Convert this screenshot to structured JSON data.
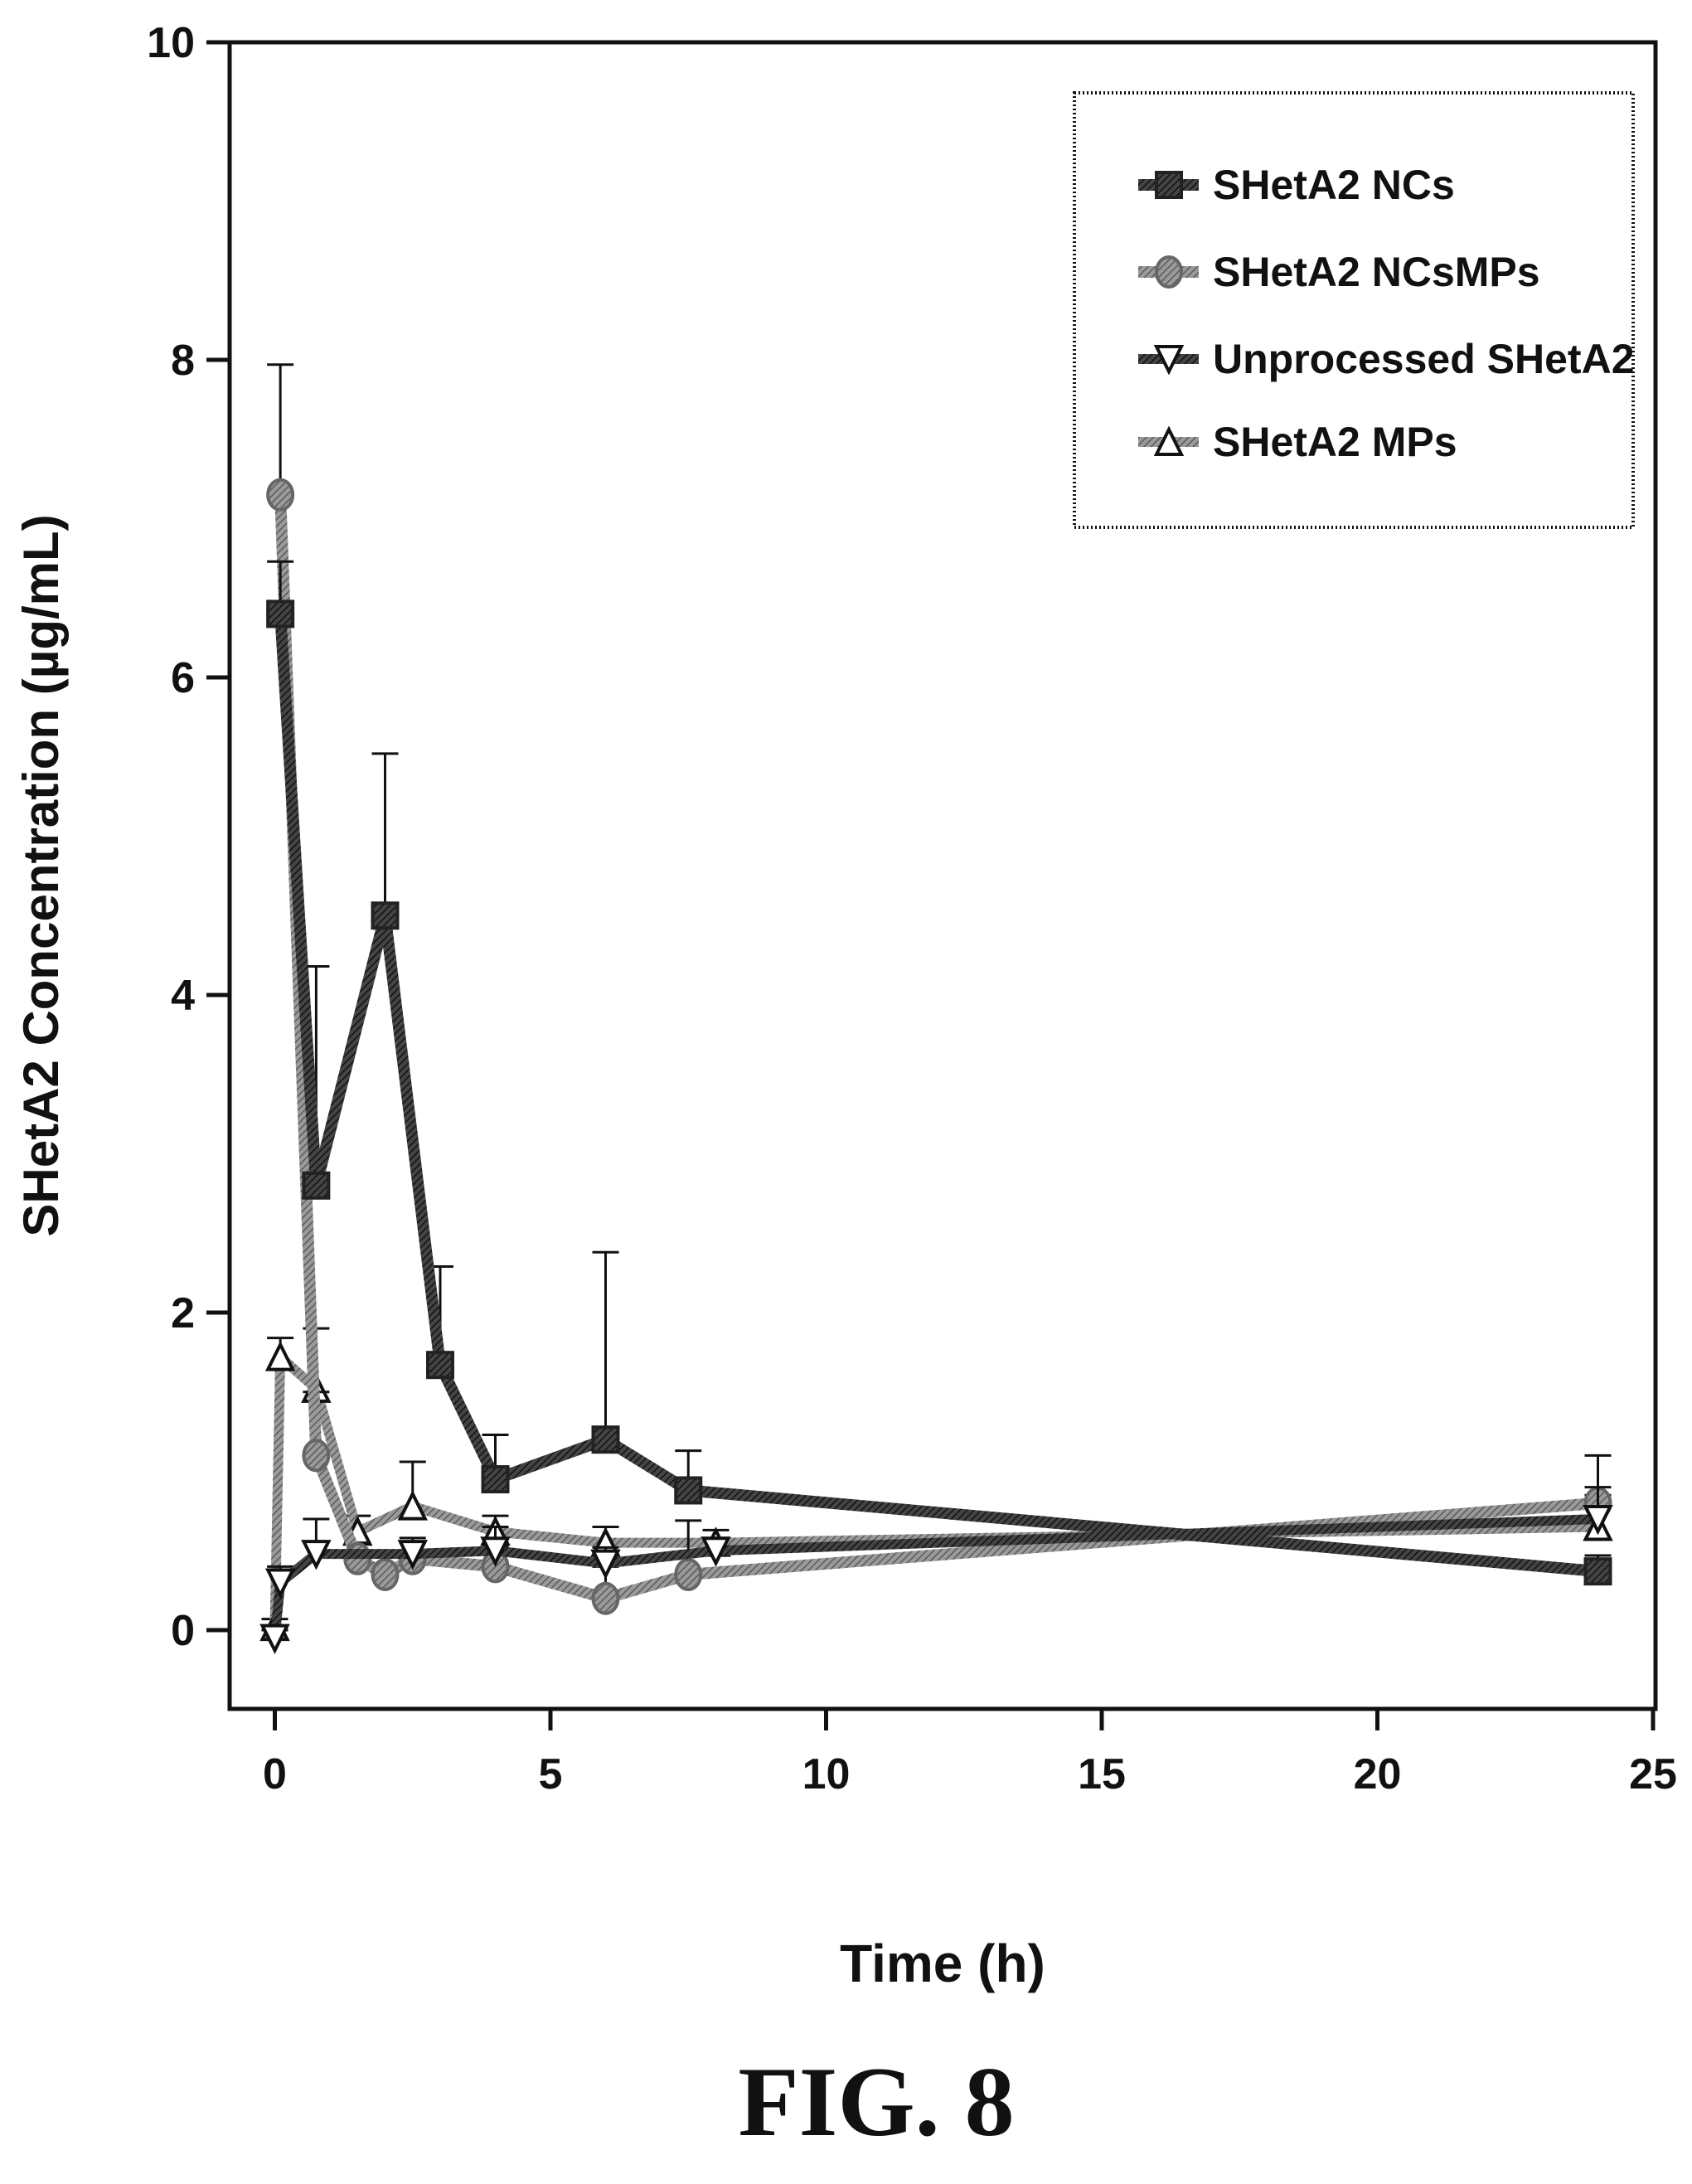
{
  "chart_data": {
    "type": "line",
    "xlabel": "Time (h)",
    "ylabel": "SHetA2 Concentration (µg/mL)",
    "xlim": [
      -0.8,
      25
    ],
    "ylim": [
      -0.5,
      10
    ],
    "xticks": [
      "0",
      "5",
      "10",
      "15",
      "20",
      "25"
    ],
    "yticks": [
      "0",
      "2",
      "4",
      "6",
      "8",
      "10"
    ],
    "legend_position": "top-right",
    "series": [
      {
        "name": "SHetA2 NCs",
        "marker": "square",
        "points": [
          {
            "x": 0.1,
            "y": 6.4,
            "err": 0.33
          },
          {
            "x": 0.75,
            "y": 2.8,
            "err": 1.38
          },
          {
            "x": 2,
            "y": 4.5,
            "err": 1.02
          },
          {
            "x": 3,
            "y": 1.67,
            "err": 0.62
          },
          {
            "x": 4,
            "y": 0.95,
            "err": 0.28
          },
          {
            "x": 6,
            "y": 1.2,
            "err": 1.18
          },
          {
            "x": 7.5,
            "y": 0.88,
            "err": 0.25
          },
          {
            "x": 24,
            "y": 0.37,
            "err": 0.1
          }
        ]
      },
      {
        "name": "SHetA2 NCsMPs",
        "marker": "diamond",
        "points": [
          {
            "x": 0.1,
            "y": 7.15,
            "err": 0.82
          },
          {
            "x": 0.75,
            "y": 1.1,
            "err": 0.4
          },
          {
            "x": 1.5,
            "y": 0.45,
            "err": 0.1
          },
          {
            "x": 2,
            "y": 0.35,
            "err": 0.15
          },
          {
            "x": 2.5,
            "y": 0.45,
            "err": 0.1
          },
          {
            "x": 4,
            "y": 0.4,
            "err": 0.13
          },
          {
            "x": 6,
            "y": 0.2,
            "err": 0.2
          },
          {
            "x": 7.5,
            "y": 0.35,
            "err": 0.34
          },
          {
            "x": 24,
            "y": 0.8,
            "err": 0.3
          }
        ]
      },
      {
        "name": "Unprocessed SHetA2",
        "marker": "triangle-down",
        "points": [
          {
            "x": 0,
            "y": -0.05,
            "err": 0.05
          },
          {
            "x": 0.1,
            "y": 0.3,
            "err": 0.1
          },
          {
            "x": 0.75,
            "y": 0.48,
            "err": 0.22
          },
          {
            "x": 2.5,
            "y": 0.48,
            "err": 0.1
          },
          {
            "x": 4,
            "y": 0.5,
            "err": 0.15
          },
          {
            "x": 6,
            "y": 0.42,
            "err": 0.1
          },
          {
            "x": 8,
            "y": 0.5,
            "err": 0.08
          },
          {
            "x": 24,
            "y": 0.7,
            "err": 0.2
          }
        ]
      },
      {
        "name": "SHetA2 MPs",
        "marker": "triangle-up",
        "points": [
          {
            "x": 0,
            "y": 0.02,
            "err": 0.05
          },
          {
            "x": 0.1,
            "y": 1.72,
            "err": 0.12
          },
          {
            "x": 0.75,
            "y": 1.52,
            "err": 0.38
          },
          {
            "x": 1.5,
            "y": 0.62,
            "err": 0.1
          },
          {
            "x": 2.5,
            "y": 0.78,
            "err": 0.28
          },
          {
            "x": 4,
            "y": 0.62,
            "err": 0.1
          },
          {
            "x": 6,
            "y": 0.55,
            "err": 0.1
          },
          {
            "x": 8,
            "y": 0.55,
            "err": 0.08
          },
          {
            "x": 24,
            "y": 0.65,
            "err": 0.2
          }
        ]
      }
    ]
  },
  "figure": {
    "caption": "FIG. 8"
  }
}
